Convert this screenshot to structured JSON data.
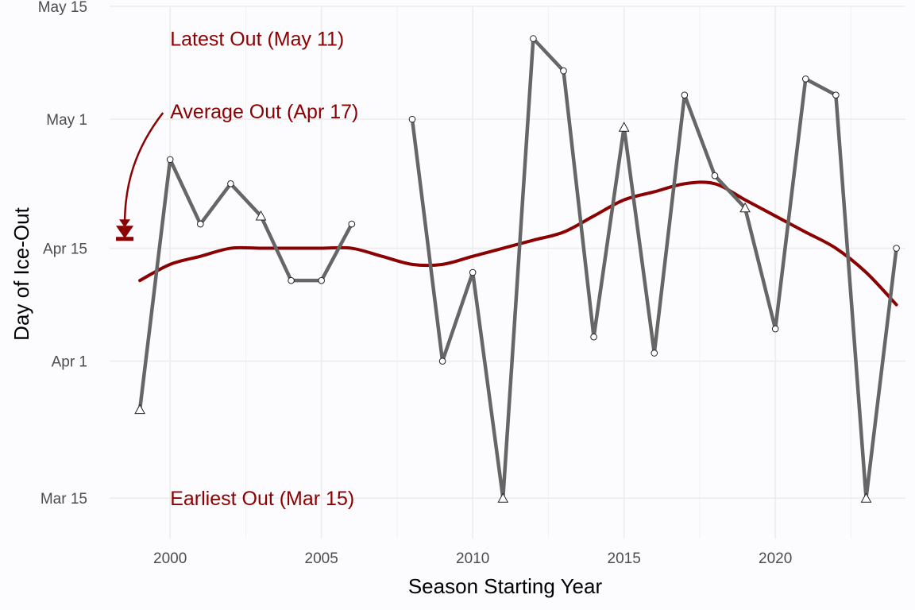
{
  "chart_data": {
    "type": "line",
    "xlabel": "Season Starting Year",
    "ylabel": "Day of Ice-Out",
    "xlim": [
      1998,
      2024.3
    ],
    "ylim": [
      "2023-03-10",
      "2023-05-15"
    ],
    "x_ticks": [
      2000,
      2005,
      2010,
      2015,
      2020
    ],
    "y_ticks": [
      {
        "label": "Mar 15",
        "date": "2023-03-15"
      },
      {
        "label": "Apr 1",
        "date": "2023-04-01"
      },
      {
        "label": "Apr 15",
        "date": "2023-04-15"
      },
      {
        "label": "May 1",
        "date": "2023-05-01"
      },
      {
        "label": "May 15",
        "date": "2023-05-15"
      }
    ],
    "grid": true,
    "colors": {
      "series": "#666666",
      "trend": "#8b0000",
      "annotation": "#8b0000"
    },
    "marker_legend": {
      "circle": "circle",
      "triangle": "triangle"
    },
    "series": [
      {
        "kind": "observed",
        "points": [
          {
            "year": 1999,
            "date": "2023-03-26",
            "marker": "triangle"
          },
          {
            "year": 2000,
            "date": "2023-04-26",
            "marker": "circle"
          },
          {
            "year": 2001,
            "date": "2023-04-18",
            "marker": "circle"
          },
          {
            "year": 2002,
            "date": "2023-04-23",
            "marker": "circle"
          },
          {
            "year": 2003,
            "date": "2023-04-19",
            "marker": "triangle"
          },
          {
            "year": 2004,
            "date": "2023-04-11",
            "marker": "circle"
          },
          {
            "year": 2005,
            "date": "2023-04-11",
            "marker": "circle"
          },
          {
            "year": 2006,
            "date": "2023-04-18",
            "marker": "circle"
          },
          {
            "year": 2007,
            "date": null,
            "marker": "circle"
          },
          {
            "year": 2008,
            "date": "2023-05-01",
            "marker": "circle"
          },
          {
            "year": 2009,
            "date": "2023-04-01",
            "marker": "circle"
          },
          {
            "year": 2010,
            "date": "2023-04-12",
            "marker": "circle"
          },
          {
            "year": 2011,
            "date": "2023-03-15",
            "marker": "triangle"
          },
          {
            "year": 2012,
            "date": "2023-05-11",
            "marker": "circle"
          },
          {
            "year": 2013,
            "date": "2023-05-07",
            "marker": "circle"
          },
          {
            "year": 2014,
            "date": "2023-04-04",
            "marker": "circle"
          },
          {
            "year": 2015,
            "date": "2023-04-30",
            "marker": "triangle"
          },
          {
            "year": 2016,
            "date": "2023-04-02",
            "marker": "circle"
          },
          {
            "year": 2017,
            "date": "2023-05-04",
            "marker": "circle"
          },
          {
            "year": 2018,
            "date": "2023-04-24",
            "marker": "circle"
          },
          {
            "year": 2019,
            "date": "2023-04-20",
            "marker": "triangle"
          },
          {
            "year": 2020,
            "date": "2023-04-05",
            "marker": "circle"
          },
          {
            "year": 2021,
            "date": "2023-05-06",
            "marker": "circle"
          },
          {
            "year": 2022,
            "date": "2023-05-04",
            "marker": "circle"
          },
          {
            "year": 2023,
            "date": "2023-03-15",
            "marker": "triangle"
          },
          {
            "year": 2024,
            "date": "2023-04-15",
            "marker": "circle"
          }
        ]
      },
      {
        "kind": "smoothed-trend",
        "points": [
          {
            "year": 1999,
            "date": "2023-04-11"
          },
          {
            "year": 2000,
            "date": "2023-04-13"
          },
          {
            "year": 2001,
            "date": "2023-04-14"
          },
          {
            "year": 2002,
            "date": "2023-04-15"
          },
          {
            "year": 2003,
            "date": "2023-04-15"
          },
          {
            "year": 2004,
            "date": "2023-04-15"
          },
          {
            "year": 2005,
            "date": "2023-04-15"
          },
          {
            "year": 2006,
            "date": "2023-04-15"
          },
          {
            "year": 2007,
            "date": "2023-04-14"
          },
          {
            "year": 2008,
            "date": "2023-04-13"
          },
          {
            "year": 2009,
            "date": "2023-04-13"
          },
          {
            "year": 2010,
            "date": "2023-04-14"
          },
          {
            "year": 2011,
            "date": "2023-04-15"
          },
          {
            "year": 2012,
            "date": "2023-04-16"
          },
          {
            "year": 2013,
            "date": "2023-04-17"
          },
          {
            "year": 2014,
            "date": "2023-04-19"
          },
          {
            "year": 2015,
            "date": "2023-04-21"
          },
          {
            "year": 2016,
            "date": "2023-04-22"
          },
          {
            "year": 2017,
            "date": "2023-04-23"
          },
          {
            "year": 2018,
            "date": "2023-04-23"
          },
          {
            "year": 2019,
            "date": "2023-04-21"
          },
          {
            "year": 2020,
            "date": "2023-04-19"
          },
          {
            "year": 2021,
            "date": "2023-04-17"
          },
          {
            "year": 2022,
            "date": "2023-04-15"
          },
          {
            "year": 2023,
            "date": "2023-04-12"
          },
          {
            "year": 2024,
            "date": "2023-04-08"
          }
        ]
      }
    ],
    "annotations": [
      {
        "text": "Latest Out (May 11)",
        "year": 2000,
        "date": "2023-05-11"
      },
      {
        "text": "Average Out (Apr 17)",
        "year": 2000,
        "date": "2023-05-02"
      },
      {
        "text": "Earliest Out (Mar 15)",
        "year": 2000,
        "date": "2023-03-15"
      }
    ],
    "average_marker": {
      "year": 1998.5,
      "date": "2023-04-17",
      "shape": "down-triangle"
    }
  }
}
